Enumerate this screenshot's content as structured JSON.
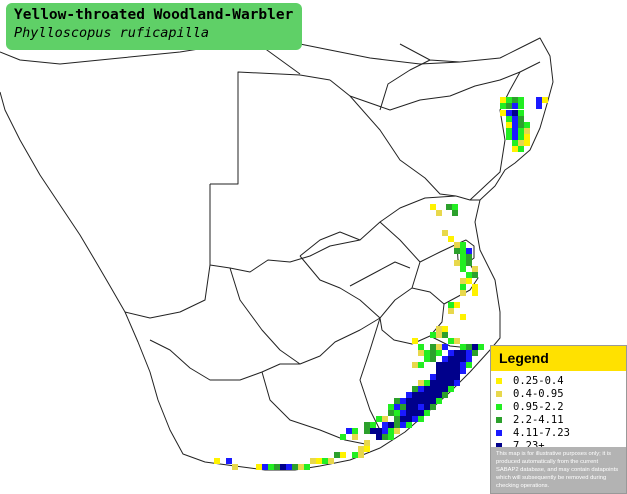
{
  "title": {
    "common_name": "Yellow-throated Woodland-Warbler",
    "scientific_name": "Phylloscopus ruficapilla"
  },
  "legend": {
    "heading": "Legend",
    "items": [
      {
        "label": "0.25-0.4",
        "color": "#fff200"
      },
      {
        "label": "0.4-0.95",
        "color": "#e8d84c"
      },
      {
        "label": "0.95-2.2",
        "color": "#22ee22"
      },
      {
        "label": "2.2-4.11",
        "color": "#2ca02c"
      },
      {
        "label": "4.11-7.23",
        "color": "#1a1aff"
      },
      {
        "label": "7.23+",
        "color": "#00008b"
      }
    ],
    "disclaimer": "This map is for illustrative purposes only; it is produced automatically from the current SABAP2 database, and may contain datapoints which will subsequently be removed during checking operations."
  },
  "colors": {
    "title_bg": "#5fd067",
    "legend_head_bg": "#ffe100",
    "disclaimer_bg": "#b3b3b3"
  }
}
